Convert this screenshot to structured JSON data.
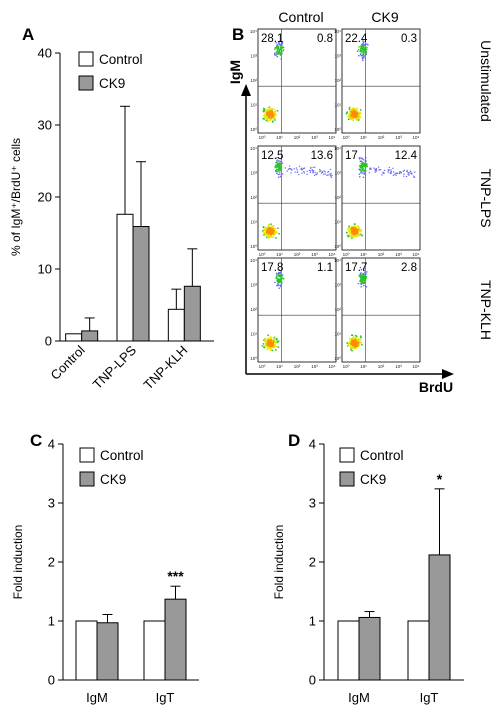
{
  "colors": {
    "control": "#ffffff",
    "ck9": "#999999",
    "axis": "#000000",
    "dot_low": "#6a6af0",
    "dot_high": "#2cc12c"
  },
  "panels": {
    "A": "A",
    "B": "B",
    "C": "C",
    "D": "D"
  },
  "chart_data": [
    {
      "id": "A",
      "type": "bar",
      "categories": [
        "Control",
        "TNP-LPS",
        "TNP-KLH"
      ],
      "ylabel": "% of IgM⁺/BrdU⁺ cells",
      "ylim": [
        0,
        40
      ],
      "yticks": [
        "0",
        "10",
        "20",
        "30",
        "40"
      ],
      "series": [
        {
          "name": "Control",
          "values": [
            1.0,
            17.6,
            4.4
          ],
          "errors": [
            0,
            15.0,
            2.8
          ]
        },
        {
          "name": "CK9",
          "values": [
            1.4,
            15.9,
            7.6
          ],
          "errors": [
            1.8,
            9.0,
            5.2
          ]
        }
      ],
      "legend": [
        "Control",
        "CK9"
      ],
      "legend_position": "top-right"
    },
    {
      "id": "C",
      "type": "bar",
      "categories": [
        "IgM",
        "IgT"
      ],
      "ylabel": "Fold induction",
      "ylim": [
        0,
        4
      ],
      "yticks": [
        "0",
        "1",
        "2",
        "3",
        "4"
      ],
      "series": [
        {
          "name": "Control",
          "values": [
            1.0,
            1.0
          ],
          "errors": [
            0,
            0
          ]
        },
        {
          "name": "CK9",
          "values": [
            0.97,
            1.37
          ],
          "errors": [
            0.14,
            0.22
          ]
        }
      ],
      "annotations": [
        {
          "category": "IgT",
          "series": "CK9",
          "text": "***"
        }
      ],
      "legend": [
        "Control",
        "CK9"
      ],
      "legend_position": "top-left"
    },
    {
      "id": "D",
      "type": "bar",
      "categories": [
        "IgM",
        "IgT"
      ],
      "ylabel": "Fold induction",
      "ylim": [
        0,
        4
      ],
      "yticks": [
        "0",
        "1",
        "2",
        "3",
        "4"
      ],
      "series": [
        {
          "name": "Control",
          "values": [
            1.0,
            1.0
          ],
          "errors": [
            0,
            0
          ]
        },
        {
          "name": "CK9",
          "values": [
            1.06,
            2.12
          ],
          "errors": [
            0.1,
            1.12
          ]
        }
      ],
      "annotations": [
        {
          "category": "IgT",
          "series": "CK9",
          "text": "*"
        }
      ],
      "legend": [
        "Control",
        "CK9"
      ],
      "legend_position": "top-left"
    }
  ],
  "flow": {
    "columns": [
      "Control",
      "CK9"
    ],
    "rows": [
      "Unstimulated",
      "TNP-LPS",
      "TNP-KLH"
    ],
    "ylabel": "IgM",
    "xlabel": "BrdU",
    "axis_ticks": [
      "10⁰",
      "10¹",
      "10²",
      "10³",
      "10⁴"
    ],
    "quadrants": [
      [
        {
          "ul": "28.1",
          "ur": "0.8"
        },
        {
          "ul": "22.4",
          "ur": "0.3"
        }
      ],
      [
        {
          "ul": "12.5",
          "ur": "13.6"
        },
        {
          "ul": "17",
          "ur": "12.4"
        }
      ],
      [
        {
          "ul": "17.8",
          "ur": "1.1"
        },
        {
          "ul": "17.7",
          "ur": "2.8"
        }
      ]
    ]
  }
}
